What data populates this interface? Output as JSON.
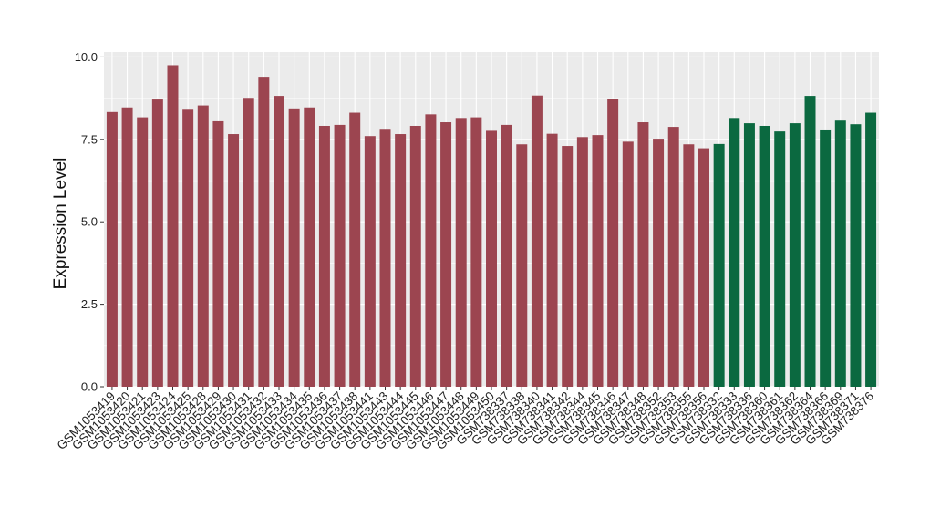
{
  "chart_data": {
    "type": "bar",
    "title": "",
    "xlabel": "",
    "ylabel": "Expression Level",
    "ylim": [
      0,
      10.15
    ],
    "yticks": [
      0.0,
      2.5,
      5.0,
      7.5,
      10.0
    ],
    "ytick_labels": [
      "0.0",
      "2.5",
      "5.0",
      "7.5",
      "10.0"
    ],
    "grid": true,
    "legend": "none",
    "colors": {
      "group1": "#9c4550",
      "group2": "#0b6940",
      "panel_bg": "#ebebeb",
      "grid": "#ffffff"
    },
    "categories": [
      "GSM1053419",
      "GSM1053420",
      "GSM1053421",
      "GSM1053423",
      "GSM1053424",
      "GSM1053425",
      "GSM1053428",
      "GSM1053429",
      "GSM1053430",
      "GSM1053431",
      "GSM1053432",
      "GSM1053433",
      "GSM1053434",
      "GSM1053435",
      "GSM1053436",
      "GSM1053437",
      "GSM1053438",
      "GSM1053441",
      "GSM1053443",
      "GSM1053444",
      "GSM1053445",
      "GSM1053446",
      "GSM1053447",
      "GSM1053448",
      "GSM1053449",
      "GSM1053450",
      "GSM738337",
      "GSM738338",
      "GSM738340",
      "GSM738341",
      "GSM738342",
      "GSM738344",
      "GSM738345",
      "GSM738346",
      "GSM738347",
      "GSM738348",
      "GSM738352",
      "GSM738353",
      "GSM738355",
      "GSM738356",
      "GSM738332",
      "GSM738333",
      "GSM738336",
      "GSM738360",
      "GSM738361",
      "GSM738362",
      "GSM738364",
      "GSM738366",
      "GSM738369",
      "GSM738371",
      "GSM738376"
    ],
    "values": [
      8.33,
      8.47,
      8.17,
      8.71,
      9.75,
      8.4,
      8.53,
      8.05,
      7.66,
      8.76,
      9.4,
      8.82,
      8.44,
      8.47,
      7.91,
      7.94,
      8.31,
      7.6,
      7.82,
      7.66,
      7.91,
      8.26,
      8.02,
      8.15,
      8.17,
      7.76,
      7.94,
      7.35,
      8.83,
      7.67,
      7.3,
      7.57,
      7.63,
      8.73,
      7.43,
      8.02,
      7.52,
      7.88,
      7.35,
      7.23,
      7.36,
      8.15,
      7.99,
      7.91,
      7.74,
      7.99,
      8.82,
      7.8,
      8.07,
      7.96,
      8.31
    ],
    "groups": [
      1,
      1,
      1,
      1,
      1,
      1,
      1,
      1,
      1,
      1,
      1,
      1,
      1,
      1,
      1,
      1,
      1,
      1,
      1,
      1,
      1,
      1,
      1,
      1,
      1,
      1,
      1,
      1,
      1,
      1,
      1,
      1,
      1,
      1,
      1,
      1,
      1,
      1,
      1,
      1,
      2,
      2,
      2,
      2,
      2,
      2,
      2,
      2,
      2,
      2,
      2
    ]
  }
}
